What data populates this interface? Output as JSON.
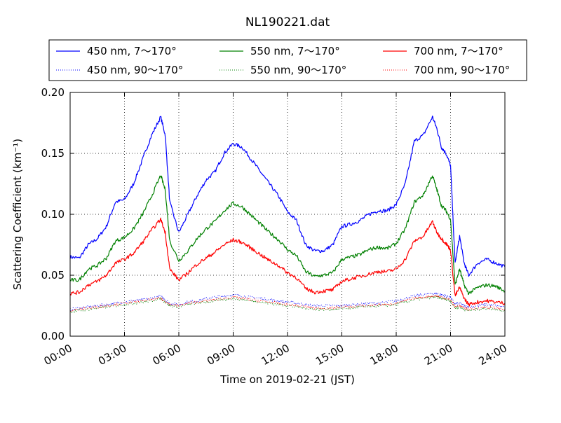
{
  "chart_data": {
    "type": "line",
    "title": "NL190221.dat",
    "xlabel": "Time on 2019-02-21 (JST)",
    "ylabel": "Scattering Coefficient (km⁻¹)",
    "xlim": [
      "00:00",
      "24:00"
    ],
    "ylim": [
      0.0,
      0.2
    ],
    "x_ticks": [
      "00:00",
      "03:00",
      "06:00",
      "09:00",
      "12:00",
      "15:00",
      "18:00",
      "21:00",
      "24:00"
    ],
    "y_ticks": [
      "0.00",
      "0.05",
      "0.10",
      "0.15",
      "0.20"
    ],
    "grid": true,
    "legend_position": "top, above plot, 3 columns",
    "x": [
      "00:00",
      "00:30",
      "01:00",
      "01:30",
      "02:00",
      "02:30",
      "03:00",
      "03:30",
      "04:00",
      "04:30",
      "05:00",
      "05:15",
      "05:30",
      "06:00",
      "06:30",
      "07:00",
      "07:30",
      "08:00",
      "08:30",
      "09:00",
      "09:30",
      "10:00",
      "10:30",
      "11:00",
      "11:30",
      "12:00",
      "12:30",
      "13:00",
      "13:30",
      "14:00",
      "14:30",
      "15:00",
      "15:30",
      "16:00",
      "16:30",
      "17:00",
      "17:30",
      "18:00",
      "18:30",
      "19:00",
      "19:30",
      "20:00",
      "20:15",
      "20:30",
      "20:45",
      "21:00",
      "21:15",
      "21:30",
      "21:45",
      "22:00",
      "22:30",
      "23:00",
      "23:30",
      "24:00"
    ],
    "series": [
      {
        "name": "450 nm, 7～170°",
        "color": "#0000ff",
        "style": "solid",
        "values": [
          0.065,
          0.064,
          0.075,
          0.08,
          0.09,
          0.11,
          0.112,
          0.125,
          0.145,
          0.165,
          0.18,
          0.165,
          0.11,
          0.085,
          0.1,
          0.115,
          0.128,
          0.135,
          0.15,
          0.158,
          0.155,
          0.145,
          0.135,
          0.125,
          0.115,
          0.102,
          0.095,
          0.075,
          0.07,
          0.07,
          0.075,
          0.09,
          0.092,
          0.095,
          0.1,
          0.103,
          0.103,
          0.108,
          0.125,
          0.16,
          0.165,
          0.18,
          0.17,
          0.155,
          0.15,
          0.14,
          0.06,
          0.082,
          0.06,
          0.05,
          0.06,
          0.063,
          0.06,
          0.057
        ]
      },
      {
        "name": "450 nm, 90～170°",
        "color": "#0000ff",
        "style": "dotted",
        "values": [
          0.022,
          0.023,
          0.024,
          0.025,
          0.026,
          0.027,
          0.028,
          0.029,
          0.03,
          0.031,
          0.033,
          0.03,
          0.027,
          0.026,
          0.028,
          0.029,
          0.031,
          0.032,
          0.033,
          0.034,
          0.033,
          0.032,
          0.031,
          0.03,
          0.029,
          0.028,
          0.027,
          0.026,
          0.025,
          0.025,
          0.025,
          0.025,
          0.026,
          0.026,
          0.027,
          0.027,
          0.028,
          0.029,
          0.031,
          0.033,
          0.034,
          0.035,
          0.035,
          0.034,
          0.033,
          0.032,
          0.026,
          0.027,
          0.025,
          0.024,
          0.025,
          0.026,
          0.025,
          0.024
        ]
      },
      {
        "name": "550 nm, 7～170°",
        "color": "#008000",
        "style": "solid",
        "values": [
          0.046,
          0.046,
          0.055,
          0.058,
          0.064,
          0.078,
          0.081,
          0.088,
          0.1,
          0.115,
          0.132,
          0.12,
          0.078,
          0.062,
          0.07,
          0.08,
          0.088,
          0.094,
          0.103,
          0.109,
          0.106,
          0.099,
          0.092,
          0.085,
          0.079,
          0.071,
          0.066,
          0.053,
          0.049,
          0.05,
          0.052,
          0.063,
          0.065,
          0.067,
          0.071,
          0.073,
          0.072,
          0.076,
          0.088,
          0.11,
          0.116,
          0.132,
          0.12,
          0.107,
          0.103,
          0.096,
          0.042,
          0.055,
          0.042,
          0.035,
          0.04,
          0.042,
          0.041,
          0.037
        ]
      },
      {
        "name": "550 nm, 90～170°",
        "color": "#008000",
        "style": "dotted",
        "values": [
          0.02,
          0.021,
          0.022,
          0.023,
          0.024,
          0.025,
          0.026,
          0.027,
          0.028,
          0.029,
          0.031,
          0.028,
          0.025,
          0.024,
          0.026,
          0.027,
          0.028,
          0.029,
          0.03,
          0.031,
          0.03,
          0.029,
          0.028,
          0.027,
          0.026,
          0.025,
          0.024,
          0.023,
          0.022,
          0.022,
          0.022,
          0.023,
          0.023,
          0.024,
          0.024,
          0.025,
          0.025,
          0.026,
          0.028,
          0.03,
          0.031,
          0.032,
          0.032,
          0.031,
          0.03,
          0.029,
          0.023,
          0.024,
          0.022,
          0.021,
          0.022,
          0.023,
          0.022,
          0.021
        ]
      },
      {
        "name": "700 nm, 7～170°",
        "color": "#ff0000",
        "style": "solid",
        "values": [
          0.035,
          0.036,
          0.042,
          0.045,
          0.05,
          0.06,
          0.063,
          0.068,
          0.077,
          0.087,
          0.096,
          0.085,
          0.055,
          0.046,
          0.052,
          0.059,
          0.064,
          0.069,
          0.075,
          0.079,
          0.077,
          0.072,
          0.067,
          0.062,
          0.058,
          0.052,
          0.048,
          0.039,
          0.036,
          0.037,
          0.038,
          0.045,
          0.047,
          0.049,
          0.051,
          0.053,
          0.053,
          0.055,
          0.063,
          0.078,
          0.082,
          0.094,
          0.085,
          0.08,
          0.076,
          0.071,
          0.033,
          0.04,
          0.031,
          0.026,
          0.028,
          0.029,
          0.028,
          0.027
        ]
      },
      {
        "name": "700 nm, 90～170°",
        "color": "#ff0000",
        "style": "dotted",
        "values": [
          0.021,
          0.022,
          0.023,
          0.024,
          0.025,
          0.026,
          0.027,
          0.028,
          0.029,
          0.03,
          0.031,
          0.029,
          0.026,
          0.025,
          0.027,
          0.028,
          0.029,
          0.03,
          0.031,
          0.032,
          0.031,
          0.03,
          0.029,
          0.028,
          0.027,
          0.026,
          0.025,
          0.024,
          0.023,
          0.023,
          0.023,
          0.024,
          0.024,
          0.025,
          0.025,
          0.026,
          0.026,
          0.027,
          0.029,
          0.031,
          0.032,
          0.033,
          0.033,
          0.032,
          0.031,
          0.03,
          0.024,
          0.025,
          0.023,
          0.022,
          0.023,
          0.024,
          0.023,
          0.022
        ]
      }
    ]
  }
}
